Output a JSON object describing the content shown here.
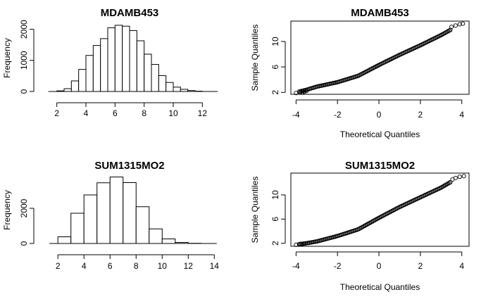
{
  "chart_data": [
    {
      "type": "bar",
      "title": "MDAMB453",
      "xlabel": "",
      "ylabel": "Frequency",
      "xlim": [
        1,
        13
      ],
      "ylim": [
        0,
        2150
      ],
      "xticks": [
        2,
        4,
        6,
        8,
        10,
        12
      ],
      "yticks": [
        0,
        1000,
        2000
      ],
      "bins": [
        {
          "x0": 2.0,
          "x1": 2.5,
          "count": 20
        },
        {
          "x0": 2.5,
          "x1": 3.0,
          "count": 90
        },
        {
          "x0": 3.0,
          "x1": 3.5,
          "count": 340
        },
        {
          "x0": 3.5,
          "x1": 4.0,
          "count": 710
        },
        {
          "x0": 4.0,
          "x1": 4.5,
          "count": 1160
        },
        {
          "x0": 4.5,
          "x1": 5.0,
          "count": 1480
        },
        {
          "x0": 5.0,
          "x1": 5.5,
          "count": 1700
        },
        {
          "x0": 5.5,
          "x1": 6.0,
          "count": 2050
        },
        {
          "x0": 6.0,
          "x1": 6.5,
          "count": 2130
        },
        {
          "x0": 6.5,
          "x1": 7.0,
          "count": 2100
        },
        {
          "x0": 7.0,
          "x1": 7.5,
          "count": 1960
        },
        {
          "x0": 7.5,
          "x1": 8.0,
          "count": 1630
        },
        {
          "x0": 8.0,
          "x1": 8.5,
          "count": 1200
        },
        {
          "x0": 8.5,
          "x1": 9.0,
          "count": 870
        },
        {
          "x0": 9.0,
          "x1": 9.5,
          "count": 510
        },
        {
          "x0": 9.5,
          "x1": 10.0,
          "count": 290
        },
        {
          "x0": 10.0,
          "x1": 10.5,
          "count": 140
        },
        {
          "x0": 10.5,
          "x1": 11.0,
          "count": 70
        },
        {
          "x0": 11.0,
          "x1": 11.5,
          "count": 30
        },
        {
          "x0": 11.5,
          "x1": 12.0,
          "count": 10
        }
      ]
    },
    {
      "type": "scatter",
      "title": "MDAMB453",
      "xlabel": "Theoretical Quantiles",
      "ylabel": "Sample Quantiles",
      "xlim": [
        -4.25,
        4.35
      ],
      "ylim": [
        1.7,
        13.2
      ],
      "xticks": [
        -4,
        -2,
        0,
        2,
        4
      ],
      "yticks": [
        2,
        6,
        10
      ],
      "curve": [
        [
          -4.0,
          2.0
        ],
        [
          -3.5,
          2.4
        ],
        [
          -3.0,
          2.9
        ],
        [
          -2.0,
          3.6
        ],
        [
          -1.0,
          4.6
        ],
        [
          0.0,
          6.3
        ],
        [
          1.0,
          7.9
        ],
        [
          2.0,
          9.4
        ],
        [
          3.0,
          11.0
        ],
        [
          3.5,
          11.9
        ],
        [
          3.9,
          12.6
        ]
      ],
      "tail_points": [
        [
          -4.0,
          1.9
        ],
        [
          -3.8,
          1.95
        ],
        [
          -3.7,
          2.0
        ],
        [
          -3.6,
          2.1
        ],
        [
          -3.5,
          2.2
        ],
        [
          3.5,
          12.3
        ],
        [
          3.7,
          12.5
        ],
        [
          3.9,
          12.7
        ],
        [
          4.05,
          12.8
        ]
      ]
    },
    {
      "type": "bar",
      "title": "SUM1315MO2",
      "xlabel": "",
      "ylabel": "Frequency",
      "xlim": [
        0.8,
        14.2
      ],
      "ylim": [
        0,
        3800
      ],
      "xticks": [
        2,
        4,
        6,
        8,
        10,
        12,
        14
      ],
      "yticks": [
        0,
        2000
      ],
      "bins": [
        {
          "x0": 2,
          "x1": 3,
          "count": 380
        },
        {
          "x0": 3,
          "x1": 4,
          "count": 1720
        },
        {
          "x0": 4,
          "x1": 5,
          "count": 2760
        },
        {
          "x0": 5,
          "x1": 6,
          "count": 3450
        },
        {
          "x0": 6,
          "x1": 7,
          "count": 3780
        },
        {
          "x0": 7,
          "x1": 8,
          "count": 3460
        },
        {
          "x0": 8,
          "x1": 9,
          "count": 2090
        },
        {
          "x0": 9,
          "x1": 10,
          "count": 830
        },
        {
          "x0": 10,
          "x1": 11,
          "count": 260
        },
        {
          "x0": 11,
          "x1": 12,
          "count": 60
        },
        {
          "x0": 12,
          "x1": 13,
          "count": 10
        }
      ]
    },
    {
      "type": "scatter",
      "title": "SUM1315MO2",
      "xlabel": "Theoretical Quantiles",
      "ylabel": "Sample Quantiles",
      "xlim": [
        -4.25,
        4.35
      ],
      "ylim": [
        1.5,
        13.6
      ],
      "xticks": [
        -4,
        -2,
        0,
        2,
        4
      ],
      "yticks": [
        2,
        6,
        10
      ],
      "curve": [
        [
          -4.0,
          1.8
        ],
        [
          -3.5,
          2.0
        ],
        [
          -3.0,
          2.3
        ],
        [
          -2.0,
          3.2
        ],
        [
          -1.0,
          4.3
        ],
        [
          0.0,
          6.2
        ],
        [
          1.0,
          8.0
        ],
        [
          2.0,
          9.6
        ],
        [
          3.0,
          11.2
        ],
        [
          3.5,
          12.2
        ],
        [
          3.9,
          12.9
        ]
      ],
      "tail_points": [
        [
          -4.0,
          1.75
        ],
        [
          -3.8,
          1.8
        ],
        [
          -3.7,
          1.85
        ],
        [
          -3.6,
          1.95
        ],
        [
          3.55,
          12.55
        ],
        [
          3.7,
          12.8
        ],
        [
          3.9,
          13.0
        ],
        [
          4.1,
          13.1
        ]
      ]
    }
  ]
}
